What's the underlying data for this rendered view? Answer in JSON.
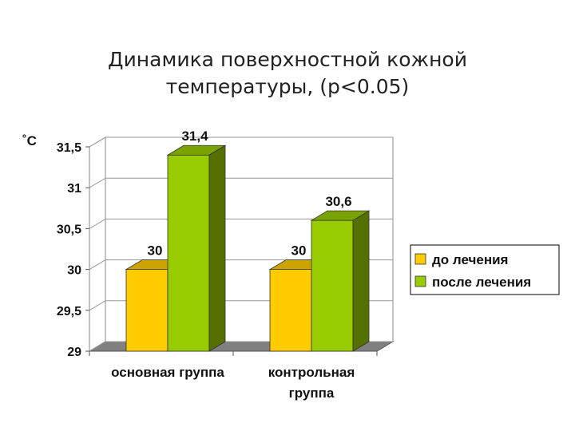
{
  "chart_data": {
    "type": "bar",
    "title": "Динамика поверхностной кожной",
    "subtitle": "температуры, (p<0.05)",
    "ylabel": "˚C",
    "xlabel": "",
    "categories": [
      "основная группа",
      "контрольная группа"
    ],
    "category_lines": [
      [
        "основная группа"
      ],
      [
        "контрольная",
        "группа"
      ]
    ],
    "series": [
      {
        "name": "до лечения",
        "values": [
          30,
          30
        ],
        "data_labels": [
          "30",
          "30"
        ],
        "color": "#FFCC00"
      },
      {
        "name": "после лечения",
        "values": [
          31.4,
          30.6
        ],
        "data_labels": [
          "31,4",
          "30,6"
        ],
        "color": "#99CC00"
      }
    ],
    "ylim": [
      29,
      31.5
    ],
    "yticks": [
      29,
      29.5,
      30,
      30.5,
      31,
      31.5
    ],
    "ytick_labels": [
      "29",
      "29,5",
      "30",
      "30,5",
      "31",
      "31,5"
    ],
    "grid": true,
    "legend_position": "right",
    "style": "3d"
  }
}
